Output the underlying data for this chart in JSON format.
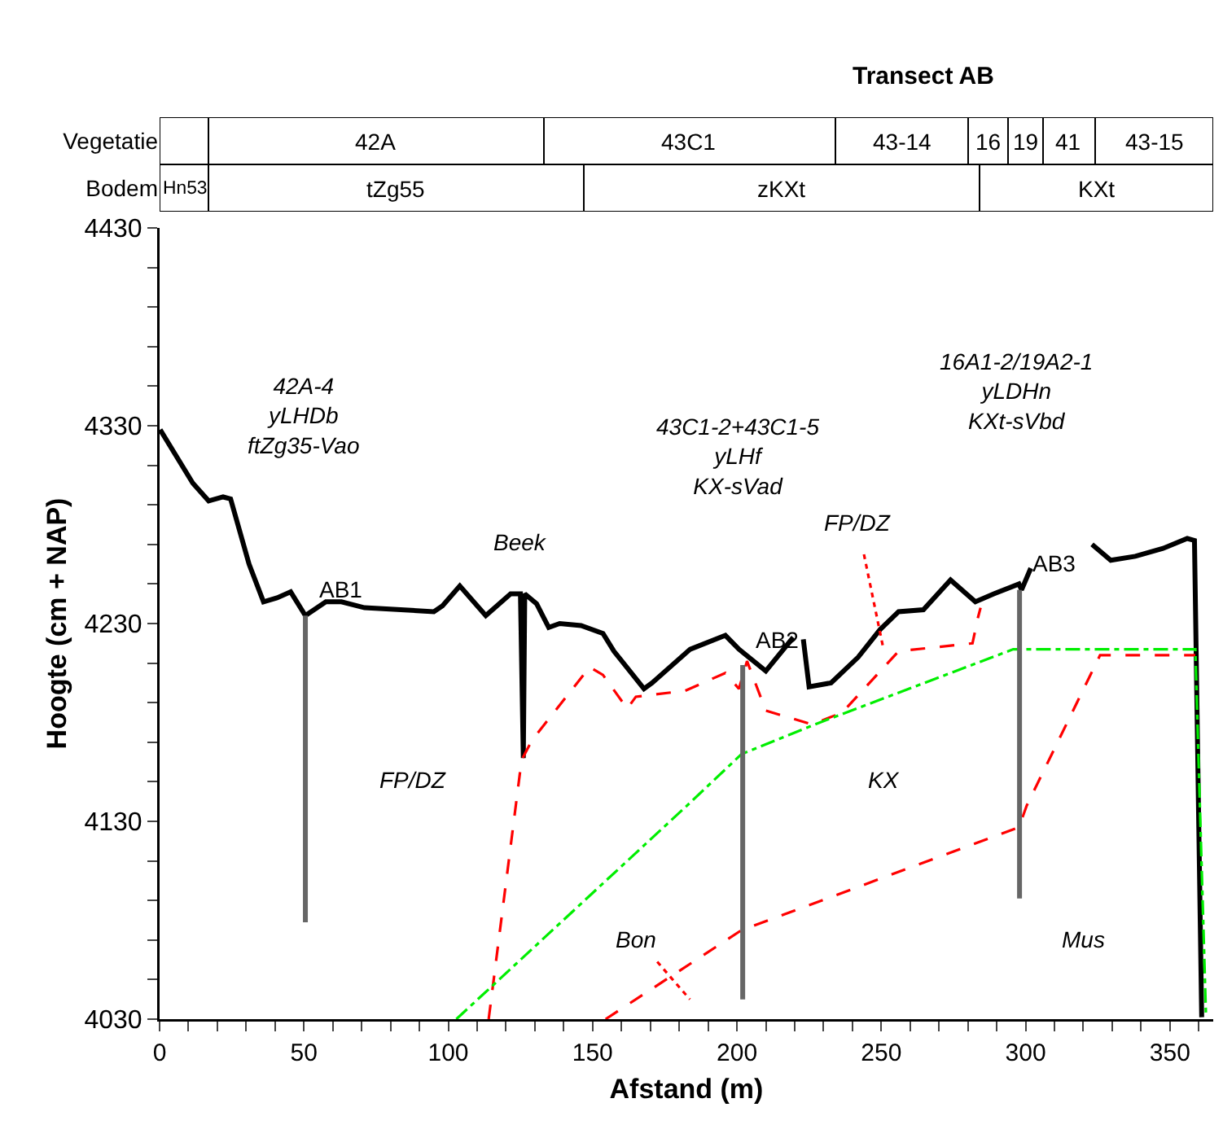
{
  "chart_data": [
    {
      "type": "bar",
      "title": "Transect AB",
      "orientation": "horizontal",
      "stacked": true,
      "categories": [
        "Vegetatie",
        "Bodem"
      ],
      "xlim": [
        0,
        365
      ],
      "tick_labels": "y",
      "series": [
        {
          "color": "#ffffff",
          "values": [
            17,
            null
          ]
        },
        {
          "name": "42A",
          "color": "#ffffff",
          "values": [
            116,
            null
          ]
        },
        {
          "name": "43C1",
          "color": "#ffffff",
          "values": [
            101,
            null
          ]
        },
        {
          "name": "43-14",
          "color": "#ffffff",
          "values": [
            46,
            null
          ]
        },
        {
          "name": "16",
          "color": "#ffffff",
          "values": [
            14,
            null
          ]
        },
        {
          "name": "19",
          "color": "#ffffff",
          "values": [
            12,
            null
          ]
        },
        {
          "name": "41",
          "color": "#ffffff",
          "values": [
            18,
            null
          ]
        },
        {
          "name": "43-15",
          "color": "#ffffff",
          "values": [
            41,
            null
          ]
        },
        {
          "name": "Hn53",
          "color": "#ffffff",
          "values": [
            null,
            17
          ]
        },
        {
          "name": "tZg55",
          "color": "#ffffff",
          "values": [
            null,
            130
          ]
        },
        {
          "name": "zKXt",
          "color": "#ffffff",
          "values": [
            null,
            137
          ]
        },
        {
          "name": "KXt",
          "color": "#ffffff",
          "values": [
            null,
            81
          ]
        }
      ]
    },
    {
      "type": "line",
      "xlabel": "Afstand (m)",
      "ylabel": "Hoogte (cm + NAP)",
      "xlim": [
        0,
        365
      ],
      "ylim": [
        4030,
        4430
      ],
      "xticks": [
        0,
        {
          "value": 10,
          "label": null
        },
        {
          "value": 20,
          "label": null
        },
        {
          "value": 30,
          "label": null
        },
        {
          "value": 40,
          "label": null
        },
        50,
        {
          "value": 60,
          "label": null
        },
        {
          "value": 70,
          "label": null
        },
        {
          "value": 80,
          "label": null
        },
        {
          "value": 90,
          "label": null
        },
        100,
        {
          "value": 110,
          "label": null
        },
        {
          "value": 120,
          "label": null
        },
        {
          "value": 130,
          "label": null
        },
        {
          "value": 140,
          "label": null
        },
        150,
        {
          "value": 160,
          "label": null
        },
        {
          "value": 170,
          "label": null
        },
        {
          "value": 180,
          "label": null
        },
        {
          "value": 190,
          "label": null
        },
        200,
        {
          "value": 210,
          "label": null
        },
        {
          "value": 220,
          "label": null
        },
        {
          "value": 230,
          "label": null
        },
        {
          "value": 240,
          "label": null
        },
        250,
        {
          "value": 260,
          "label": null
        },
        {
          "value": 270,
          "label": null
        },
        {
          "value": 280,
          "label": null
        },
        {
          "value": 290,
          "label": null
        },
        300,
        {
          "value": 310,
          "label": null
        },
        {
          "value": 320,
          "label": null
        },
        {
          "value": 330,
          "label": null
        },
        {
          "value": 340,
          "label": null
        },
        350,
        {
          "value": 360,
          "label": null
        }
      ],
      "yticks": [
        4030,
        {
          "value": 4050,
          "label": null
        },
        {
          "value": 4070,
          "label": null
        },
        {
          "value": 4090,
          "label": null
        },
        {
          "value": 4110,
          "label": null
        },
        4130,
        {
          "value": 4150,
          "label": null
        },
        {
          "value": 4170,
          "label": null
        },
        {
          "value": 4190,
          "label": null
        },
        {
          "value": 4210,
          "label": null
        },
        4230,
        {
          "value": 4250,
          "label": null
        },
        {
          "value": 4270,
          "label": null
        },
        {
          "value": 4290,
          "label": null
        },
        {
          "value": 4310,
          "label": null
        },
        4330,
        {
          "value": 4350,
          "label": null
        },
        {
          "value": 4370,
          "label": null
        },
        {
          "value": 4390,
          "label": null
        },
        {
          "value": 4410,
          "label": null
        },
        4430
      ],
      "grid": false,
      "legend": false,
      "series": [
        {
          "color": "#000000",
          "line_style": "solid",
          "x": [
            0.2,
            11.5,
            17,
            22,
            24.6,
            31,
            36,
            40.7,
            45.4,
            50.5,
            57.6,
            63,
            71,
            95,
            98,
            104,
            113,
            121.6,
            125,
            126,
            126.5,
            130.6,
            134.8,
            138.6,
            146,
            153.6,
            157.4,
            167.8,
            170.6,
            183.8,
            196,
            200.7,
            210,
            219.5,
            221,
            223,
            225,
            232.6,
            242,
            249.6,
            256,
            264.6,
            274,
            282.6,
            289,
            297.7,
            298.6,
            301.8,
            312,
            323,
            329.5,
            338,
            347.6,
            356,
            358.5,
            361
          ],
          "values": [
            4328,
            4301,
            4292,
            4294,
            4293,
            4260,
            4241,
            4243,
            4246,
            4234,
            4241,
            4241,
            4238,
            4236,
            4239,
            4249,
            4234,
            4245,
            4245,
            4162,
            4245,
            4240,
            4228,
            4230,
            4229,
            4225,
            4216,
            4197,
            4200,
            4217,
            4224,
            4217,
            4206,
            4223,
            null,
            4222,
            4198,
            4200,
            4213,
            4227,
            4236,
            4237,
            4252,
            4241,
            4245,
            4250,
            4247,
            4258,
            null,
            4270,
            4262,
            4264,
            4268,
            4273,
            4272,
            4031
          ]
        },
        {
          "color": "#ff0000",
          "line_style": "dashed",
          "x": [
            114,
            125.4,
            129,
            149,
            153.6,
            162,
            165,
            182,
            196,
            200.7,
            203.5,
            210,
            226,
            236.5,
            256,
            281.6,
            283.5,
            284.4
          ],
          "values": [
            4030,
            4161,
            4171,
            4208,
            4204,
            4187,
            4193,
            4196,
            4205,
            4197,
            4211,
            4186,
            4179,
            4185,
            4216,
            4220,
            4233,
            4238
          ]
        },
        {
          "color": "#ff0000",
          "line_style": "dashed",
          "x": [
            154.5,
            201.6,
            297.7,
            300.4,
            325.8,
            358.8
          ],
          "values": [
            4030,
            4075,
            4127,
            4138,
            4214,
            4214
          ]
        },
        {
          "color": "#ff0000",
          "line_style": "dotted",
          "x": [
            244,
            250.5
          ],
          "values": [
            4265,
            4219
          ]
        },
        {
          "color": "#ff0000",
          "line_style": "dotted",
          "x": [
            172.4,
            183.7
          ],
          "values": [
            4059,
            4040
          ]
        },
        {
          "color": "#00ee00",
          "line_style": "dashdot",
          "x": [
            102.8,
            182,
            201.6,
            227,
            295.7,
            358.8,
            362.5
          ],
          "values": [
            4030,
            4137,
            4164,
            4179,
            4217,
            4217,
            4031
          ]
        },
        {
          "name": "AB1",
          "color": "#666666",
          "line_style": "solid",
          "x": [
            50.5,
            50.5
          ],
          "values": [
            4234,
            4079
          ]
        },
        {
          "name": "AB2",
          "color": "#666666",
          "line_style": "solid",
          "x": [
            202,
            202
          ],
          "values": [
            4209,
            4040
          ]
        },
        {
          "name": "AB3",
          "color": "#666666",
          "line_style": "solid",
          "x": [
            297.9,
            297.9
          ],
          "values": [
            4247,
            4091
          ]
        }
      ],
      "annotations": [
        "42A-4\nyLHDb\nftZg35-Vao",
        "43C1-2+43C1-5\nyLHf\nKX-sVad",
        "16A1-2/19A2-1\nyLDHn\nKXt-sVbd",
        "Beek",
        "FP/DZ",
        "FP/DZ",
        "KX",
        "Bon",
        "Mus"
      ]
    }
  ]
}
